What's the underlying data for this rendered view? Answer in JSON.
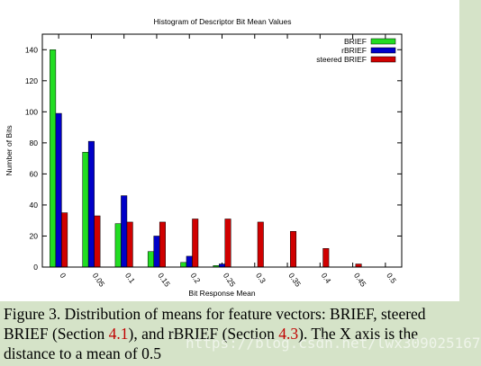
{
  "chart_data": {
    "type": "bar",
    "title": "Histogram of Descriptor Bit Mean Values",
    "xlabel": "Bit Response Mean",
    "ylabel": "Number of Bits",
    "ylim": [
      0,
      150
    ],
    "yticks": [
      0,
      20,
      40,
      60,
      80,
      100,
      120,
      140
    ],
    "categories": [
      "0",
      "0.05",
      "0.1",
      "0.15",
      "0.2",
      "0.25",
      "0.3",
      "0.35",
      "0.4",
      "0.45",
      "0.5"
    ],
    "legend_position": "top-right",
    "grid": false,
    "series": [
      {
        "name": "BRIEF",
        "color": "#22dd22",
        "values": [
          140,
          74,
          28,
          10,
          3,
          1,
          0,
          0,
          0,
          0,
          0
        ]
      },
      {
        "name": "rBRIEF",
        "color": "#0000c8",
        "values": [
          99,
          81,
          46,
          20,
          7,
          2,
          0,
          0,
          0,
          0,
          0
        ]
      },
      {
        "name": "steered BRIEF",
        "color": "#d00000",
        "values": [
          35,
          33,
          29,
          29,
          31,
          31,
          29,
          23,
          12,
          2,
          0
        ]
      }
    ]
  },
  "caption": {
    "line1": "Figure 3. Distribution of means for feature vectors: BRIEF, steered",
    "line2_a": "BRIEF (Section ",
    "line2_ref1": "4.1",
    "line2_b": "), and rBRIEF (Section ",
    "line2_ref2": "4.3",
    "line2_c": ").  The X axis is the",
    "line3": "distance to a mean of 0.5"
  },
  "watermark": "https://blog.csdn.net/lwx309025167"
}
